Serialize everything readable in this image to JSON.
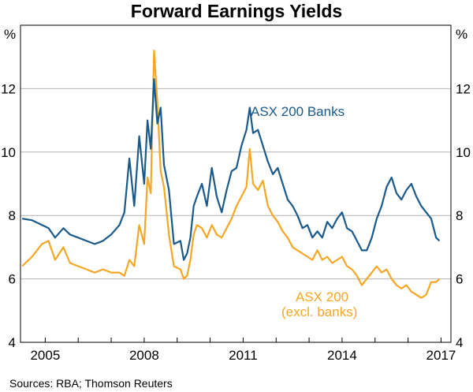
{
  "chart_data": {
    "type": "line",
    "title": "Forward Earnings Yields",
    "y_unit": "%",
    "source": "Sources:   RBA; Thomson Reuters",
    "ylim": [
      4,
      14
    ],
    "yticks": [
      "4",
      "6",
      "8",
      "10",
      "12"
    ],
    "xlim": [
      2004.25,
      2017.3
    ],
    "xticks": [
      "2005",
      "2008",
      "2011",
      "2014",
      "2017"
    ],
    "grid": true,
    "colors": {
      "banks": "#1a5a8a",
      "asx200": "#f5a623"
    },
    "annotations": {
      "banks": [
        "ASX 200 Banks"
      ],
      "asx200": [
        "ASX 200",
        "(excl. banks)"
      ]
    },
    "series": [
      {
        "key": "banks",
        "name": "ASX 200 Banks",
        "x": [
          2004.3,
          2004.6,
          2004.9,
          2005.1,
          2005.3,
          2005.55,
          2005.75,
          2006.0,
          2006.25,
          2006.5,
          2006.75,
          2007.0,
          2007.25,
          2007.4,
          2007.55,
          2007.7,
          2007.85,
          2008.0,
          2008.1,
          2008.2,
          2008.3,
          2008.4,
          2008.5,
          2008.6,
          2008.75,
          2008.9,
          2009.1,
          2009.2,
          2009.3,
          2009.4,
          2009.5,
          2009.6,
          2009.75,
          2009.9,
          2010.05,
          2010.2,
          2010.35,
          2010.5,
          2010.65,
          2010.8,
          2010.95,
          2011.1,
          2011.2,
          2011.3,
          2011.45,
          2011.6,
          2011.75,
          2011.9,
          2012.05,
          2012.2,
          2012.35,
          2012.5,
          2012.65,
          2012.8,
          2012.95,
          2013.1,
          2013.25,
          2013.4,
          2013.55,
          2013.7,
          2013.85,
          2014.0,
          2014.15,
          2014.3,
          2014.45,
          2014.6,
          2014.75,
          2014.9,
          2015.05,
          2015.2,
          2015.35,
          2015.5,
          2015.65,
          2015.8,
          2015.95,
          2016.1,
          2016.25,
          2016.4,
          2016.55,
          2016.7,
          2016.85,
          2016.95
        ],
        "values": [
          7.9,
          7.85,
          7.7,
          7.6,
          7.3,
          7.6,
          7.4,
          7.3,
          7.2,
          7.1,
          7.2,
          7.4,
          7.7,
          8.1,
          9.8,
          8.3,
          10.5,
          9.0,
          11.0,
          10.1,
          12.3,
          10.9,
          11.4,
          9.6,
          8.8,
          7.1,
          7.2,
          6.6,
          6.8,
          7.3,
          8.3,
          8.6,
          9.0,
          8.3,
          9.5,
          8.6,
          8.1,
          8.8,
          9.4,
          9.5,
          10.2,
          10.7,
          11.4,
          10.6,
          10.7,
          10.2,
          9.7,
          9.3,
          9.5,
          9.0,
          8.5,
          8.3,
          8.0,
          7.6,
          7.7,
          7.3,
          7.5,
          7.3,
          7.8,
          7.6,
          7.9,
          8.1,
          7.6,
          7.5,
          7.2,
          6.9,
          6.9,
          7.3,
          7.9,
          8.3,
          8.9,
          9.2,
          8.7,
          8.5,
          8.8,
          9.0,
          8.6,
          8.3,
          8.1,
          7.9,
          7.3,
          7.2
        ]
      },
      {
        "key": "asx200",
        "name": "ASX 200 (excl. banks)",
        "x": [
          2004.3,
          2004.6,
          2004.9,
          2005.1,
          2005.3,
          2005.55,
          2005.75,
          2006.0,
          2006.25,
          2006.5,
          2006.75,
          2007.0,
          2007.25,
          2007.4,
          2007.55,
          2007.7,
          2007.85,
          2008.0,
          2008.1,
          2008.2,
          2008.3,
          2008.4,
          2008.5,
          2008.6,
          2008.75,
          2008.9,
          2009.1,
          2009.2,
          2009.3,
          2009.4,
          2009.5,
          2009.6,
          2009.75,
          2009.9,
          2010.05,
          2010.2,
          2010.35,
          2010.5,
          2010.65,
          2010.8,
          2010.95,
          2011.1,
          2011.2,
          2011.3,
          2011.45,
          2011.6,
          2011.75,
          2011.9,
          2012.05,
          2012.2,
          2012.35,
          2012.5,
          2012.65,
          2012.8,
          2012.95,
          2013.1,
          2013.25,
          2013.4,
          2013.55,
          2013.7,
          2013.85,
          2014.0,
          2014.15,
          2014.3,
          2014.45,
          2014.6,
          2014.75,
          2014.9,
          2015.05,
          2015.2,
          2015.35,
          2015.5,
          2015.65,
          2015.8,
          2015.95,
          2016.1,
          2016.25,
          2016.4,
          2016.55,
          2016.7,
          2016.85,
          2016.95
        ],
        "values": [
          6.4,
          6.7,
          7.1,
          7.2,
          6.6,
          7.0,
          6.5,
          6.4,
          6.3,
          6.2,
          6.3,
          6.2,
          6.2,
          6.1,
          6.6,
          6.4,
          7.7,
          7.1,
          9.2,
          8.7,
          13.2,
          11.6,
          9.4,
          8.9,
          7.4,
          6.4,
          6.3,
          6.0,
          6.1,
          6.6,
          7.4,
          7.7,
          7.6,
          7.3,
          7.7,
          7.4,
          7.3,
          7.6,
          7.9,
          8.3,
          8.6,
          8.9,
          10.1,
          9.0,
          8.8,
          9.1,
          8.3,
          8.0,
          7.8,
          7.5,
          7.3,
          7.0,
          6.9,
          6.8,
          6.7,
          6.6,
          6.9,
          6.6,
          6.7,
          6.5,
          6.6,
          6.7,
          6.4,
          6.3,
          6.1,
          5.8,
          6.0,
          6.2,
          6.4,
          6.2,
          6.3,
          6.0,
          5.8,
          5.7,
          5.8,
          5.6,
          5.5,
          5.4,
          5.5,
          5.9,
          5.9,
          6.0
        ]
      }
    ]
  }
}
